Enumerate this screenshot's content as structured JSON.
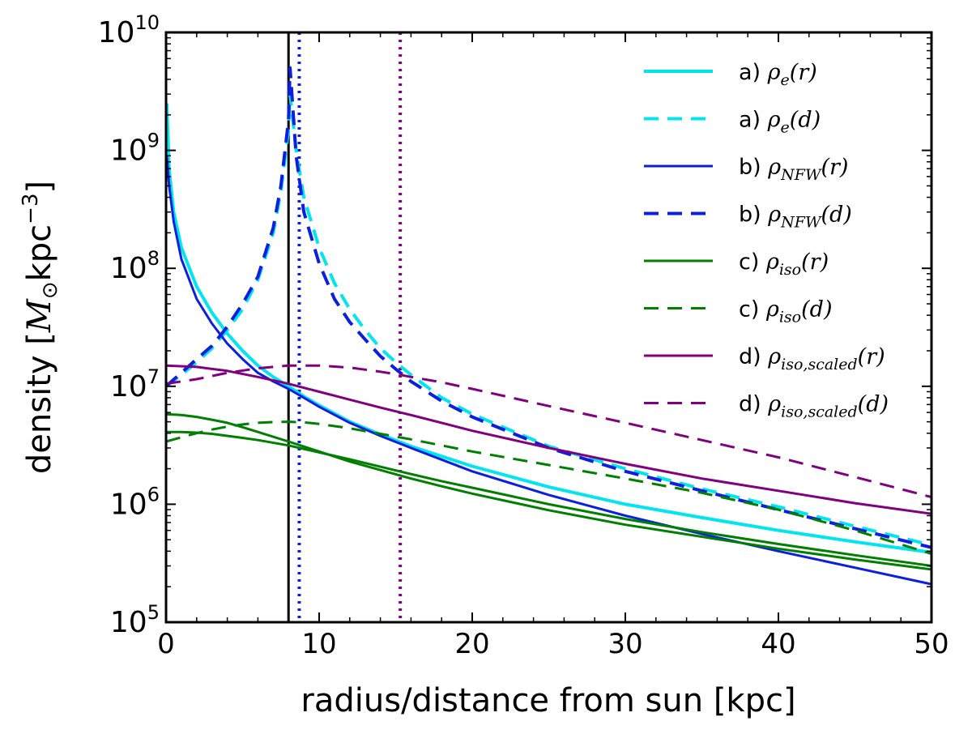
{
  "chart_data": {
    "type": "line",
    "xlabel": "radius/distance from sun [kpc]",
    "ylabel_prefix": "density [",
    "ylabel_math": "M",
    "ylabel_sub": "⊙",
    "ylabel_mid": "kpc",
    "ylabel_sup": "−3",
    "ylabel_suffix": "]",
    "yscale": "log",
    "xlim": [
      0,
      50
    ],
    "ylim": [
      100000,
      10000000000
    ],
    "x_ticks": [
      {
        "value": 0,
        "label": "0"
      },
      {
        "value": 10,
        "label": "10"
      },
      {
        "value": 20,
        "label": "20"
      },
      {
        "value": 30,
        "label": "30"
      },
      {
        "value": 40,
        "label": "40"
      },
      {
        "value": 50,
        "label": "50"
      }
    ],
    "y_ticks": [
      {
        "exp": 5,
        "base": "10",
        "sup": "5"
      },
      {
        "exp": 6,
        "base": "10",
        "sup": "6"
      },
      {
        "exp": 7,
        "base": "10",
        "sup": "7"
      },
      {
        "exp": 8,
        "base": "10",
        "sup": "8"
      },
      {
        "exp": 9,
        "base": "10",
        "sup": "9"
      },
      {
        "exp": 10,
        "base": "10",
        "sup": "10"
      }
    ],
    "vertical_lines": [
      {
        "name": "sun-position-line",
        "x": 8.0,
        "color": "#000000",
        "style": "solid"
      },
      {
        "name": "blue-dotted-line",
        "x": 8.7,
        "color": "#0a1fe0",
        "style": "dotted"
      },
      {
        "name": "purple-dotted-line",
        "x": 15.3,
        "color": "#800080",
        "style": "dotted"
      }
    ],
    "series": [
      {
        "name": "a-rho-e-r",
        "prefix": "a)",
        "sym": "ρ",
        "sub": "e",
        "arg": "r",
        "color": "#00e5ee",
        "dash": "solid",
        "width": 4,
        "x": [
          0.05,
          0.2,
          0.5,
          1,
          2,
          3,
          4,
          5,
          6,
          7,
          8,
          9,
          10,
          12,
          14,
          16,
          20,
          25,
          30,
          35,
          40,
          45,
          50
        ],
        "y": [
          2500000000,
          700000000,
          300000000,
          150000000,
          70000000,
          42000000,
          28000000,
          20000000,
          15000000,
          12000000,
          10000000,
          8200000,
          6900000,
          5000000,
          3900000,
          3100000,
          2100000,
          1400000,
          1000000,
          770000,
          600000,
          480000,
          390000
        ]
      },
      {
        "name": "a-rho-e-d",
        "prefix": "a)",
        "sym": "ρ",
        "sub": "e",
        "arg": "d",
        "color": "#00e5ee",
        "dash": "dashed",
        "width": 4,
        "x": [
          0,
          1,
          2,
          3,
          4,
          5,
          6,
          7,
          7.5,
          8,
          8.1,
          8.5,
          9,
          10,
          11,
          12,
          13,
          14,
          15,
          16,
          18,
          20,
          25,
          30,
          35,
          40,
          45,
          50
        ],
        "y": [
          10000000,
          12500000,
          16000000,
          21000000,
          30000000,
          45000000,
          80000000,
          200000000,
          450000000,
          1500000000,
          3000000000,
          1000000000,
          400000000,
          150000000,
          75000000,
          45000000,
          30000000,
          21000000,
          16000000,
          12500000,
          8000000,
          5800000,
          3100000,
          2000000,
          1350000,
          950000,
          650000,
          450000
        ]
      },
      {
        "name": "b-rho-nfw-r",
        "prefix": "b)",
        "sym": "ρ",
        "sub": "NFW",
        "arg": "r",
        "color": "#0a1fe0",
        "dash": "solid",
        "width": 3,
        "x": [
          0.05,
          0.2,
          0.5,
          1,
          2,
          3,
          4,
          5,
          6,
          7,
          8,
          9,
          10,
          12,
          14,
          16,
          20,
          25,
          30,
          35,
          40,
          45,
          50
        ],
        "y": [
          900000000,
          500000000,
          250000000,
          120000000,
          55000000,
          34000000,
          23000000,
          17000000,
          13000000,
          11000000,
          9500000,
          8000000,
          6700000,
          4900000,
          3800000,
          3000000,
          1900000,
          1200000,
          800000,
          560000,
          400000,
          290000,
          210000
        ]
      },
      {
        "name": "b-rho-nfw-d",
        "prefix": "b)",
        "sym": "ρ",
        "sub": "NFW",
        "arg": "d",
        "color": "#0a1fe0",
        "dash": "dashed",
        "width": 4,
        "x": [
          0,
          1,
          2,
          3,
          4,
          5,
          6,
          7,
          7.5,
          8,
          8.1,
          8.5,
          9,
          10,
          11,
          12,
          13,
          14,
          15,
          16,
          18,
          20,
          25,
          30,
          35,
          40,
          45,
          50
        ],
        "y": [
          10000000,
          13000000,
          17000000,
          22000000,
          32000000,
          50000000,
          85000000,
          220000000,
          500000000,
          1800000000,
          5000000000,
          900000000,
          300000000,
          110000000,
          55000000,
          35000000,
          25000000,
          18000000,
          14000000,
          11000000,
          7500000,
          5500000,
          3000000,
          1900000,
          1300000,
          900000,
          620000,
          430000
        ]
      },
      {
        "name": "c-rho-iso-r",
        "prefix": "c)",
        "sym": "ρ",
        "sub": "iso",
        "arg": "r",
        "color": "#007f00",
        "dash": "solid",
        "width": 3,
        "x": [
          0,
          1,
          2,
          3,
          4,
          5,
          6,
          8,
          10,
          12,
          14,
          16,
          18,
          20,
          25,
          30,
          35,
          40,
          45,
          50
        ],
        "y": [
          5800000,
          5700000,
          5500000,
          5200000,
          4900000,
          4500000,
          4100000,
          3400000,
          2800000,
          2300000,
          1950000,
          1650000,
          1420000,
          1230000,
          890000,
          670000,
          530000,
          420000,
          340000,
          280000
        ]
      },
      {
        "name": "c-rho-iso-d",
        "prefix": "c)",
        "sym": "ρ",
        "sub": "iso",
        "arg": "d",
        "color": "#007f00",
        "dash": "dashed",
        "width": 3,
        "x": [
          0,
          1,
          2,
          3,
          4,
          5,
          6,
          7,
          8,
          9,
          10,
          12,
          14,
          16,
          18,
          20,
          25,
          30,
          35,
          40,
          45,
          50
        ],
        "y": [
          3400000,
          3700000,
          4000000,
          4300000,
          4550000,
          4750000,
          4900000,
          4980000,
          5000000,
          4950000,
          4800000,
          4400000,
          3950000,
          3550000,
          3150000,
          2800000,
          2150000,
          1650000,
          1250000,
          900000,
          600000,
          380000
        ]
      },
      {
        "name": "c-rho-iso-extra",
        "prefix": "",
        "sym": "",
        "sub": "",
        "arg": "",
        "color": "#007f00",
        "dash": "solid",
        "width": 3,
        "legend": false,
        "x": [
          0,
          1,
          2,
          3,
          4,
          5,
          6,
          8,
          10,
          12,
          14,
          16,
          18,
          20,
          25,
          30,
          35,
          40,
          45,
          50
        ],
        "y": [
          4100000,
          4100000,
          4050000,
          3950000,
          3800000,
          3650000,
          3500000,
          3150000,
          2750000,
          2400000,
          2080000,
          1800000,
          1570000,
          1380000,
          1000000,
          750000,
          580000,
          460000,
          370000,
          300000
        ]
      },
      {
        "name": "d-rho-iso-scaled-r",
        "prefix": "d)",
        "sym": "ρ",
        "sub": "iso,scaled",
        "arg": "r",
        "color": "#800080",
        "dash": "solid",
        "width": 3,
        "x": [
          0,
          2,
          4,
          6,
          8,
          10,
          12,
          14,
          16,
          18,
          20,
          25,
          30,
          35,
          40,
          45,
          50
        ],
        "y": [
          15000000,
          14600000,
          13500000,
          12000000,
          10500000,
          9000000,
          7700000,
          6600000,
          5700000,
          4900000,
          4200000,
          3000000,
          2200000,
          1650000,
          1300000,
          1020000,
          830000
        ]
      },
      {
        "name": "d-rho-iso-scaled-d",
        "prefix": "d)",
        "sym": "ρ",
        "sub": "iso,scaled",
        "arg": "d",
        "color": "#800080",
        "dash": "dashed",
        "width": 3,
        "x": [
          0,
          2,
          4,
          6,
          8,
          10,
          12,
          14,
          15.3,
          16,
          18,
          20,
          25,
          30,
          35,
          40,
          45,
          50
        ],
        "y": [
          10500000,
          11500000,
          13000000,
          14200000,
          15000000,
          15000000,
          14400000,
          13300000,
          12500000,
          12000000,
          10800000,
          9500000,
          6800000,
          4900000,
          3500000,
          2500000,
          1700000,
          1150000
        ]
      }
    ],
    "legend_position": "top-right"
  }
}
